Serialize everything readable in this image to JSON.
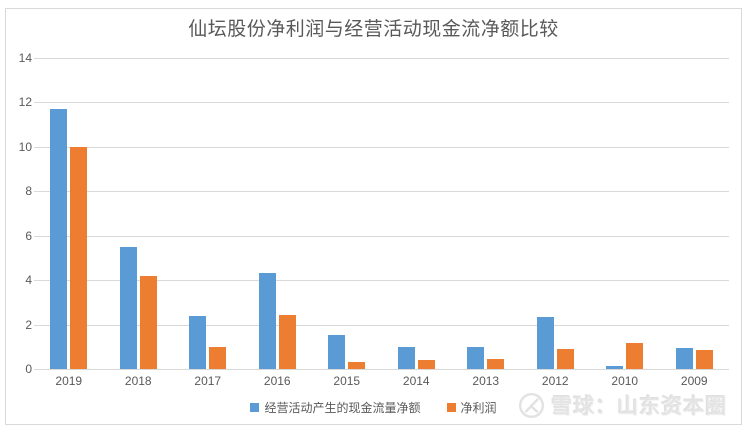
{
  "chart_data": {
    "type": "bar",
    "title": "仙坛股份净利润与经营活动现金流净额比较",
    "categories": [
      "2019",
      "2018",
      "2017",
      "2016",
      "2015",
      "2014",
      "2013",
      "2012",
      "2010",
      "2009"
    ],
    "series": [
      {
        "name": "经营活动产生的现金流量净额",
        "color": "#5B9BD5",
        "values": [
          11.7,
          5.5,
          2.4,
          4.3,
          1.55,
          1.0,
          1.0,
          2.35,
          0.15,
          0.95
        ]
      },
      {
        "name": "净利润",
        "color": "#ED7D31",
        "values": [
          10.0,
          4.2,
          1.0,
          2.45,
          0.3,
          0.4,
          0.45,
          0.9,
          1.15,
          0.85
        ]
      }
    ],
    "xlabel": "",
    "ylabel": "",
    "ylim": [
      0,
      14
    ],
    "yticks": [
      14,
      12,
      10,
      8,
      6,
      4,
      2,
      0
    ],
    "grid": "horizontal",
    "legend_position": "bottom"
  },
  "watermark": {
    "icon": "xueqiu-snowball-logo",
    "text": "雪球：山东资本圈"
  },
  "style": {
    "gridline_color": "#d9d9d9",
    "frame_border_color": "#d9d9d9",
    "axis_text_color": "#595959",
    "title_color": "#595959",
    "watermark_color": "#e4e4e4",
    "background": "#ffffff"
  }
}
